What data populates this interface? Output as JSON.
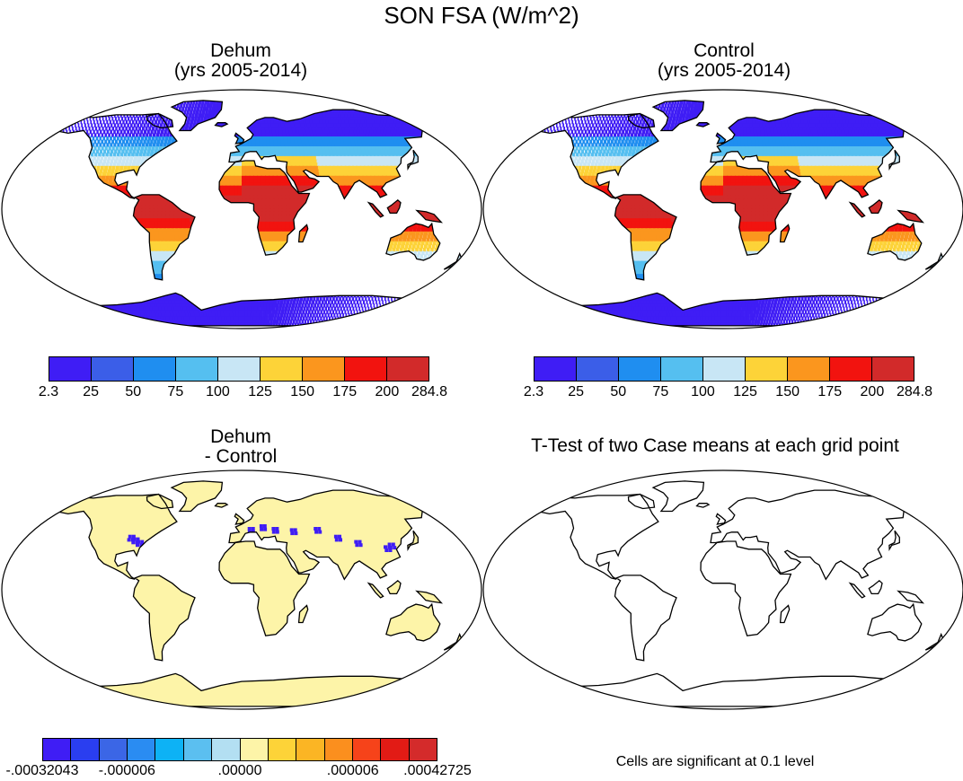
{
  "figure": {
    "title": "SON FSA (W/m^2)"
  },
  "panels": {
    "dehum": {
      "title_line1": "Dehum",
      "title_line2": "(yrs 2005-2014)"
    },
    "control": {
      "title_line1": "Control",
      "title_line2": "(yrs 2005-2014)"
    },
    "diff": {
      "title_line1": "Dehum",
      "title_line2": "- Control"
    },
    "ttest": {
      "title": "T-Test of two Case means at each grid point",
      "note": "Cells are significant at 0.1 level"
    }
  },
  "colorbars": {
    "main": {
      "labels": [
        "2.3",
        "25",
        "50",
        "75",
        "100",
        "125",
        "150",
        "175",
        "200",
        "284.8"
      ],
      "colors": [
        "#3f1df5",
        "#3b5ee8",
        "#1f8ef0",
        "#55bff0",
        "#c8e6f5",
        "#fdd338",
        "#fb961e",
        "#f2130f",
        "#d22a2a"
      ]
    },
    "diff": {
      "labels": [
        "-.00032043",
        "-.000006",
        ".00000",
        ".000006",
        ".00042725"
      ],
      "colors": [
        "#3f1df5",
        "#2a3ef0",
        "#3b66e6",
        "#2a8cf2",
        "#0db2f5",
        "#5bbff0",
        "#b3dff2",
        "#fdf4a8",
        "#fdd338",
        "#fbb524",
        "#fb8f1e",
        "#f6431a",
        "#e21b15",
        "#d42b2b"
      ]
    }
  },
  "map_colors": {
    "diff_land": "#fdf4a8",
    "diff_neg": "#3f1df5"
  }
}
